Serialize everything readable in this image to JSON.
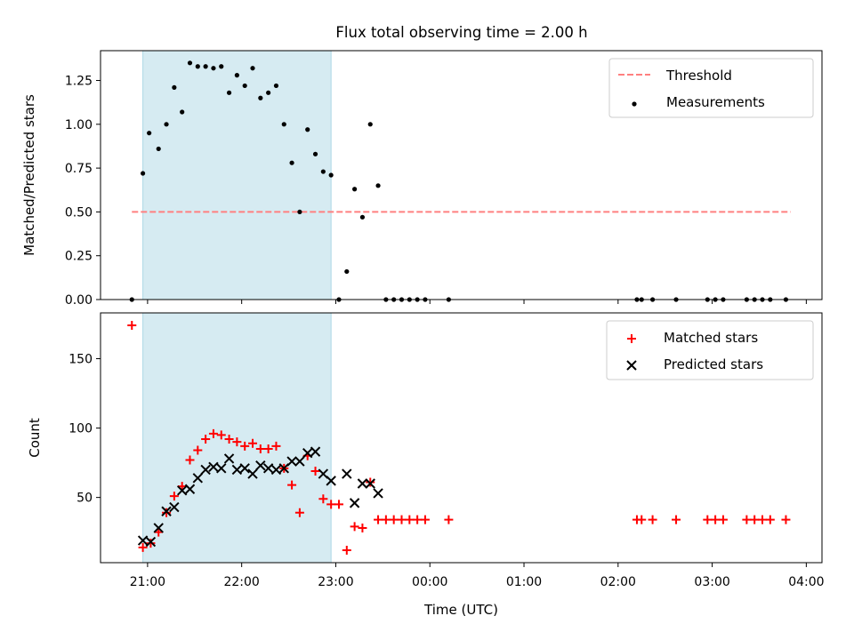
{
  "title": "Flux total observing time = 2.00 h",
  "colors": {
    "highlight": "#add8e6",
    "threshold": "#ff8080",
    "matched": "#ff0000",
    "predicted": "#000000",
    "measurement": "#000000"
  },
  "chart_data": [
    {
      "type": "scatter",
      "panel": "top",
      "ylabel": "Matched/Predicted stars",
      "ylim": [
        0,
        1.42
      ],
      "yticks": [
        0,
        0.25,
        0.5,
        0.75,
        1.0,
        1.25
      ],
      "ytick_labels": [
        "0.00",
        "0.25",
        "0.50",
        "0.75",
        "1.00",
        "1.25"
      ],
      "xlim": [
        "20:30",
        "04:10"
      ],
      "highlight_span": [
        "20:57",
        "22:57"
      ],
      "legend_position": "upper right",
      "threshold": {
        "name": "Threshold",
        "value": 0.5,
        "x_range": [
          "20:50",
          "03:50"
        ],
        "style": "dashed"
      },
      "series": [
        {
          "name": "Measurements",
          "marker": "dot",
          "points": [
            [
              "20:50",
              0.0
            ],
            [
              "20:57",
              0.72
            ],
            [
              "21:01",
              0.95
            ],
            [
              "21:07",
              0.86
            ],
            [
              "21:12",
              1.0
            ],
            [
              "21:17",
              1.21
            ],
            [
              "21:22",
              1.07
            ],
            [
              "21:27",
              1.35
            ],
            [
              "21:32",
              1.33
            ],
            [
              "21:37",
              1.33
            ],
            [
              "21:42",
              1.32
            ],
            [
              "21:47",
              1.33
            ],
            [
              "21:52",
              1.18
            ],
            [
              "21:57",
              1.28
            ],
            [
              "22:02",
              1.22
            ],
            [
              "22:07",
              1.32
            ],
            [
              "22:12",
              1.15
            ],
            [
              "22:17",
              1.18
            ],
            [
              "22:22",
              1.22
            ],
            [
              "22:27",
              1.0
            ],
            [
              "22:32",
              0.78
            ],
            [
              "22:37",
              0.5
            ],
            [
              "22:42",
              0.97
            ],
            [
              "22:47",
              0.83
            ],
            [
              "22:52",
              0.73
            ],
            [
              "22:57",
              0.71
            ],
            [
              "23:02",
              0.0
            ],
            [
              "23:07",
              0.16
            ],
            [
              "23:12",
              0.63
            ],
            [
              "23:17",
              0.47
            ],
            [
              "23:22",
              1.0
            ],
            [
              "23:27",
              0.65
            ],
            [
              "23:32",
              0.0
            ],
            [
              "23:37",
              0.0
            ],
            [
              "23:42",
              0.0
            ],
            [
              "23:47",
              0.0
            ],
            [
              "23:52",
              0.0
            ],
            [
              "23:57",
              0.0
            ],
            [
              "00:12",
              0.0
            ],
            [
              "02:12",
              0.0
            ],
            [
              "02:15",
              0.0
            ],
            [
              "02:22",
              0.0
            ],
            [
              "02:37",
              0.0
            ],
            [
              "02:57",
              0.0
            ],
            [
              "03:02",
              0.0
            ],
            [
              "03:07",
              0.0
            ],
            [
              "03:22",
              0.0
            ],
            [
              "03:27",
              0.0
            ],
            [
              "03:32",
              0.0
            ],
            [
              "03:37",
              0.0
            ],
            [
              "03:47",
              0.0
            ]
          ]
        }
      ]
    },
    {
      "type": "scatter",
      "panel": "bottom",
      "xlabel": "Time (UTC)",
      "ylabel": "Count",
      "ylim": [
        3,
        183
      ],
      "yticks": [
        50,
        100,
        150
      ],
      "ytick_labels": [
        "50",
        "100",
        "150"
      ],
      "xlim": [
        "20:30",
        "04:10"
      ],
      "xticks": [
        "21:00",
        "22:00",
        "23:00",
        "00:00",
        "01:00",
        "02:00",
        "03:00",
        "04:00"
      ],
      "xtick_labels": [
        "21:00",
        "22:00",
        "23:00",
        "00:00",
        "01:00",
        "02:00",
        "03:00",
        "04:00"
      ],
      "highlight_span": [
        "20:57",
        "22:57"
      ],
      "legend_position": "upper right",
      "series": [
        {
          "name": "Matched stars",
          "marker": "plus",
          "points": [
            [
              "20:50",
              174
            ],
            [
              "20:57",
              14
            ],
            [
              "21:02",
              17
            ],
            [
              "21:07",
              25
            ],
            [
              "21:12",
              39
            ],
            [
              "21:17",
              51
            ],
            [
              "21:22",
              58
            ],
            [
              "21:27",
              77
            ],
            [
              "21:32",
              84
            ],
            [
              "21:37",
              92
            ],
            [
              "21:42",
              96
            ],
            [
              "21:47",
              95
            ],
            [
              "21:52",
              92
            ],
            [
              "21:57",
              90
            ],
            [
              "22:02",
              87
            ],
            [
              "22:07",
              89
            ],
            [
              "22:12",
              85
            ],
            [
              "22:17",
              85
            ],
            [
              "22:22",
              87
            ],
            [
              "22:27",
              71
            ],
            [
              "22:32",
              59
            ],
            [
              "22:37",
              39
            ],
            [
              "22:42",
              80
            ],
            [
              "22:47",
              69
            ],
            [
              "22:52",
              49
            ],
            [
              "22:57",
              45
            ],
            [
              "23:02",
              45
            ],
            [
              "23:07",
              12
            ],
            [
              "23:12",
              29
            ],
            [
              "23:17",
              28
            ],
            [
              "23:22",
              61
            ],
            [
              "23:27",
              34
            ],
            [
              "23:32",
              34
            ],
            [
              "23:37",
              34
            ],
            [
              "23:42",
              34
            ],
            [
              "23:47",
              34
            ],
            [
              "23:52",
              34
            ],
            [
              "23:57",
              34
            ],
            [
              "00:12",
              34
            ],
            [
              "02:12",
              34
            ],
            [
              "02:15",
              34
            ],
            [
              "02:22",
              34
            ],
            [
              "02:37",
              34
            ],
            [
              "02:57",
              34
            ],
            [
              "03:02",
              34
            ],
            [
              "03:07",
              34
            ],
            [
              "03:22",
              34
            ],
            [
              "03:27",
              34
            ],
            [
              "03:32",
              34
            ],
            [
              "03:37",
              34
            ],
            [
              "03:47",
              34
            ]
          ]
        },
        {
          "name": "Predicted stars",
          "marker": "x",
          "points": [
            [
              "20:57",
              19
            ],
            [
              "21:02",
              18
            ],
            [
              "21:07",
              28
            ],
            [
              "21:12",
              40
            ],
            [
              "21:17",
              43
            ],
            [
              "21:22",
              55
            ],
            [
              "21:27",
              56
            ],
            [
              "21:32",
              64
            ],
            [
              "21:37",
              70
            ],
            [
              "21:42",
              72
            ],
            [
              "21:47",
              71
            ],
            [
              "21:52",
              78
            ],
            [
              "21:57",
              70
            ],
            [
              "22:02",
              71
            ],
            [
              "22:07",
              67
            ],
            [
              "22:12",
              73
            ],
            [
              "22:17",
              71
            ],
            [
              "22:22",
              70
            ],
            [
              "22:27",
              71
            ],
            [
              "22:32",
              76
            ],
            [
              "22:37",
              76
            ],
            [
              "22:42",
              82
            ],
            [
              "22:47",
              83
            ],
            [
              "22:52",
              67
            ],
            [
              "22:57",
              62
            ],
            [
              "23:07",
              67
            ],
            [
              "23:12",
              46
            ],
            [
              "23:17",
              60
            ],
            [
              "23:22",
              60
            ],
            [
              "23:27",
              53
            ]
          ]
        }
      ]
    }
  ]
}
